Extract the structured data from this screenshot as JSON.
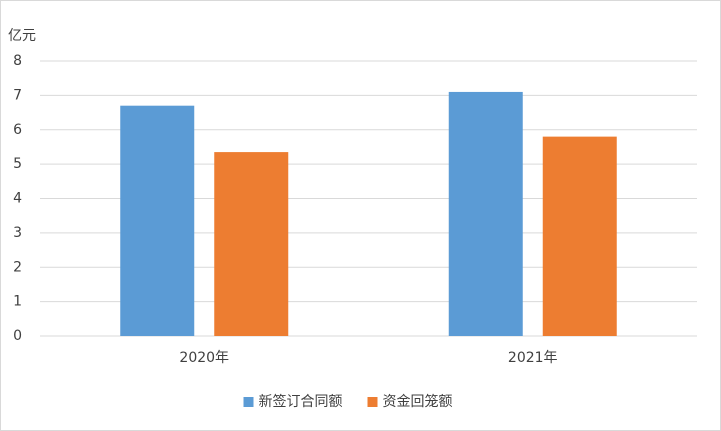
{
  "chart_data": {
    "type": "bar",
    "y_unit": "亿元",
    "categories": [
      "2020年",
      "2021年"
    ],
    "series": [
      {
        "name": "新签订合同额",
        "color": "#5b9bd5",
        "values": [
          6.7,
          7.1
        ]
      },
      {
        "name": "资金回笼额",
        "color": "#ed7d31",
        "values": [
          5.35,
          5.8
        ]
      }
    ],
    "ylim": [
      0,
      8
    ],
    "yticks": [
      0,
      1,
      2,
      3,
      4,
      5,
      6,
      7,
      8
    ],
    "grid": true,
    "legend": "bottom"
  }
}
